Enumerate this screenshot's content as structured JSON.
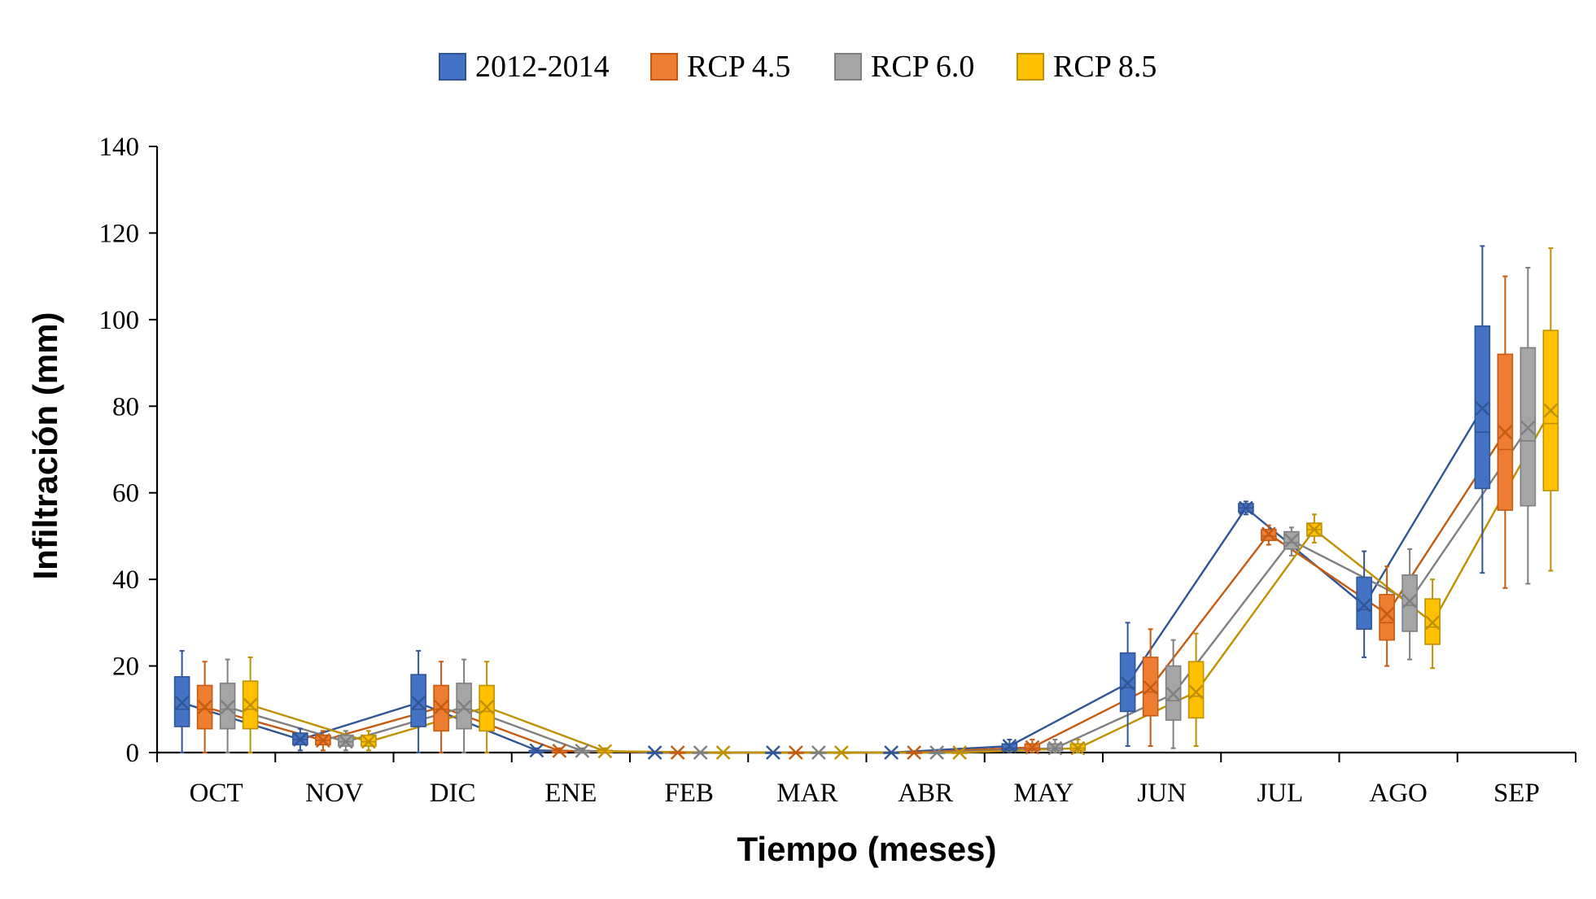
{
  "chart_data": {
    "type": "box",
    "xlabel": "Tiempo (meses)",
    "ylabel": "Infiltración (mm)",
    "ylim": [
      0,
      140
    ],
    "yticks": [
      0,
      20,
      40,
      60,
      80,
      100,
      120,
      140
    ],
    "grid": false,
    "legend_position": "top",
    "categories": [
      "OCT",
      "NOV",
      "DIC",
      "ENE",
      "FEB",
      "MAR",
      "ABR",
      "MAY",
      "JUN",
      "JUL",
      "AGO",
      "SEP"
    ],
    "series": [
      {
        "name": "2012-2014",
        "color": "#4472C4",
        "line_color": "#2F5597",
        "boxes": [
          {
            "min": 0,
            "q1": 6,
            "median": 10,
            "q3": 17.5,
            "max": 23.5,
            "mean": 11.5
          },
          {
            "min": 0.5,
            "q1": 1.8,
            "median": 3,
            "q3": 4.5,
            "max": 5.5,
            "mean": 3
          },
          {
            "min": 0,
            "q1": 6,
            "median": 10,
            "q3": 18,
            "max": 23.5,
            "mean": 11.5
          },
          {
            "min": 0,
            "q1": 0,
            "median": 0,
            "q3": 0.5,
            "max": 1,
            "mean": 0.5
          },
          {
            "min": 0,
            "q1": 0,
            "median": 0,
            "q3": 0,
            "max": 0,
            "mean": 0
          },
          {
            "min": 0,
            "q1": 0,
            "median": 0,
            "q3": 0,
            "max": 0,
            "mean": 0
          },
          {
            "min": 0,
            "q1": 0,
            "median": 0,
            "q3": 0,
            "max": 0,
            "mean": 0
          },
          {
            "min": 0,
            "q1": 0.5,
            "median": 1,
            "q3": 2,
            "max": 3,
            "mean": 1.5
          },
          {
            "min": 1.5,
            "q1": 9.5,
            "median": 15,
            "q3": 23,
            "max": 30,
            "mean": 16
          },
          {
            "min": 55,
            "q1": 55.5,
            "median": 56.5,
            "q3": 57.5,
            "max": 58,
            "mean": 56.5
          },
          {
            "min": 22,
            "q1": 28.5,
            "median": 33,
            "q3": 40.5,
            "max": 46.5,
            "mean": 34
          },
          {
            "min": 41.5,
            "q1": 61,
            "median": 74,
            "q3": 98.5,
            "max": 117,
            "mean": 79.5
          }
        ]
      },
      {
        "name": "RCP 4.5",
        "color": "#ED7D31",
        "line_color": "#C55A11",
        "boxes": [
          {
            "min": 0,
            "q1": 5.5,
            "median": 10,
            "q3": 15.5,
            "max": 21,
            "mean": 10.5
          },
          {
            "min": 0.5,
            "q1": 1.8,
            "median": 2.8,
            "q3": 4,
            "max": 5,
            "mean": 2.8
          },
          {
            "min": 0,
            "q1": 5,
            "median": 10,
            "q3": 15.5,
            "max": 21,
            "mean": 10.5
          },
          {
            "min": 0,
            "q1": 0,
            "median": 0,
            "q3": 0.5,
            "max": 1,
            "mean": 0.4
          },
          {
            "min": 0,
            "q1": 0,
            "median": 0,
            "q3": 0,
            "max": 0,
            "mean": 0
          },
          {
            "min": 0,
            "q1": 0,
            "median": 0,
            "q3": 0,
            "max": 0,
            "mean": 0
          },
          {
            "min": 0,
            "q1": 0,
            "median": 0,
            "q3": 0,
            "max": 0,
            "mean": 0
          },
          {
            "min": 0,
            "q1": 0.5,
            "median": 1,
            "q3": 2,
            "max": 3,
            "mean": 1.2
          },
          {
            "min": 1.5,
            "q1": 8.5,
            "median": 14,
            "q3": 22,
            "max": 28.5,
            "mean": 15
          },
          {
            "min": 48,
            "q1": 49,
            "median": 50,
            "q3": 51.5,
            "max": 52.5,
            "mean": 50.5
          },
          {
            "min": 20,
            "q1": 26,
            "median": 30,
            "q3": 36.5,
            "max": 43,
            "mean": 32
          },
          {
            "min": 38,
            "q1": 56,
            "median": 70,
            "q3": 92,
            "max": 110,
            "mean": 74
          }
        ]
      },
      {
        "name": "RCP 6.0",
        "color": "#A5A5A5",
        "line_color": "#7F7F7F",
        "boxes": [
          {
            "min": 0,
            "q1": 5.5,
            "median": 10,
            "q3": 16,
            "max": 21.5,
            "mean": 10.5
          },
          {
            "min": 0.5,
            "q1": 1.5,
            "median": 2.5,
            "q3": 4,
            "max": 5,
            "mean": 2.5
          },
          {
            "min": 0,
            "q1": 5.5,
            "median": 10,
            "q3": 16,
            "max": 21.5,
            "mean": 10.5
          },
          {
            "min": 0,
            "q1": 0,
            "median": 0,
            "q3": 0.5,
            "max": 1,
            "mean": 0.4
          },
          {
            "min": 0,
            "q1": 0,
            "median": 0,
            "q3": 0,
            "max": 0,
            "mean": 0
          },
          {
            "min": 0,
            "q1": 0,
            "median": 0,
            "q3": 0,
            "max": 0,
            "mean": 0
          },
          {
            "min": 0,
            "q1": 0,
            "median": 0,
            "q3": 0,
            "max": 0,
            "mean": 0
          },
          {
            "min": 0,
            "q1": 0.5,
            "median": 1,
            "q3": 2,
            "max": 3,
            "mean": 1
          },
          {
            "min": 1,
            "q1": 7.5,
            "median": 12,
            "q3": 20,
            "max": 26,
            "mean": 13.5
          },
          {
            "min": 45.5,
            "q1": 47,
            "median": 48.5,
            "q3": 51,
            "max": 52,
            "mean": 49
          },
          {
            "min": 21.5,
            "q1": 28,
            "median": 34,
            "q3": 41,
            "max": 47,
            "mean": 35
          },
          {
            "min": 39,
            "q1": 57,
            "median": 72,
            "q3": 93.5,
            "max": 112,
            "mean": 75
          }
        ]
      },
      {
        "name": "RCP 8.5",
        "color": "#FFC000",
        "line_color": "#BF9000",
        "boxes": [
          {
            "min": 0,
            "q1": 5.5,
            "median": 10,
            "q3": 16.5,
            "max": 22,
            "mean": 11
          },
          {
            "min": 0.5,
            "q1": 1.5,
            "median": 2.5,
            "q3": 4,
            "max": 5,
            "mean": 2.5
          },
          {
            "min": 0,
            "q1": 5,
            "median": 9.5,
            "q3": 15.5,
            "max": 21,
            "mean": 10.5
          },
          {
            "min": 0,
            "q1": 0,
            "median": 0,
            "q3": 0.5,
            "max": 1,
            "mean": 0.3
          },
          {
            "min": 0,
            "q1": 0,
            "median": 0,
            "q3": 0,
            "max": 0,
            "mean": 0
          },
          {
            "min": 0,
            "q1": 0,
            "median": 0,
            "q3": 0,
            "max": 0,
            "mean": 0
          },
          {
            "min": 0,
            "q1": 0,
            "median": 0,
            "q3": 0,
            "max": 0,
            "mean": 0
          },
          {
            "min": 0,
            "q1": 0.5,
            "median": 1,
            "q3": 2,
            "max": 3,
            "mean": 1
          },
          {
            "min": 1.5,
            "q1": 8,
            "median": 13,
            "q3": 21,
            "max": 27.5,
            "mean": 14
          },
          {
            "min": 48.5,
            "q1": 50,
            "median": 51.5,
            "q3": 53,
            "max": 55,
            "mean": 51.5
          },
          {
            "min": 19.5,
            "q1": 25,
            "median": 29,
            "q3": 35.5,
            "max": 40,
            "mean": 30
          },
          {
            "min": 42,
            "q1": 60.5,
            "median": 76,
            "q3": 97.5,
            "max": 116.5,
            "mean": 79
          }
        ]
      }
    ]
  }
}
